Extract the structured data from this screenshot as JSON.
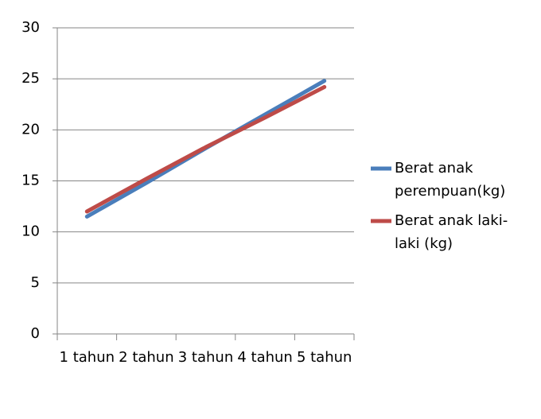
{
  "chart_data": {
    "type": "line",
    "categories": [
      "1 tahun",
      "2 tahun",
      "3 tahun",
      "4 tahun",
      "5 tahun"
    ],
    "series": [
      {
        "name": "Berat anak perempuan(kg)",
        "color": "#4a7ebb",
        "values": [
          11.5,
          14.8,
          18.2,
          21.5,
          24.8
        ]
      },
      {
        "name": "Berat anak laki-laki (kg)",
        "color": "#be4b48",
        "values": [
          12,
          15.2,
          18.3,
          21.2,
          24.2
        ]
      }
    ],
    "ylim": [
      0,
      30
    ],
    "yticks": [
      0,
      5,
      10,
      15,
      20,
      25,
      30
    ],
    "grid": true,
    "legend": "right"
  }
}
